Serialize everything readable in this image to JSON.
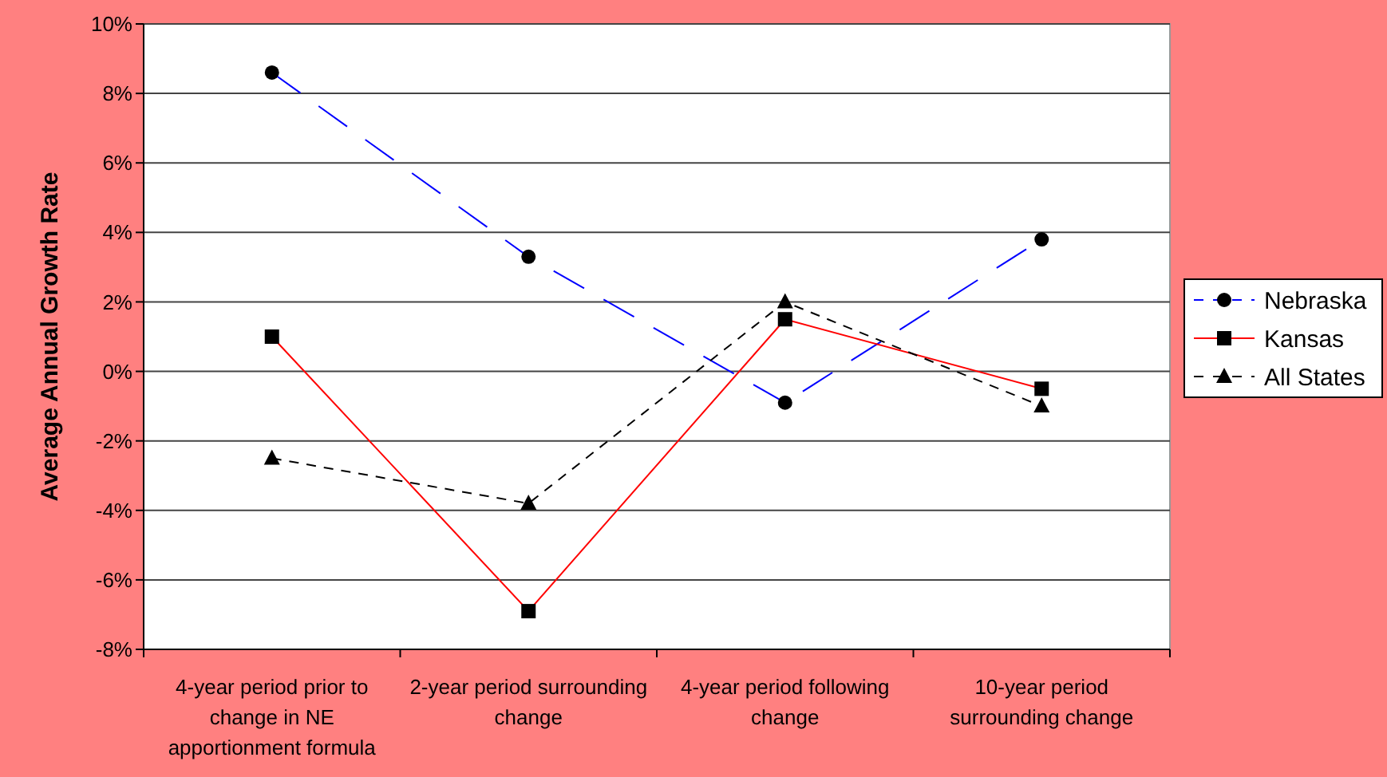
{
  "chart_data": {
    "type": "line",
    "ylabel": "Average Annual Growth Rate",
    "categories": [
      "4-year period prior to change in NE apportionment formula",
      "2-year period surrounding change",
      "4-year period following change",
      "10-year period surrounding change"
    ],
    "series": [
      {
        "name": "Nebraska",
        "color": "#0000ff",
        "values": [
          8.6,
          3.3,
          -0.9,
          3.8
        ],
        "marker": "circle",
        "line_style": "dashed"
      },
      {
        "name": "Kansas",
        "color": "#ff0000",
        "values": [
          1.0,
          -6.9,
          1.5,
          -0.5
        ],
        "marker": "square",
        "line_style": "solid"
      },
      {
        "name": "All States",
        "color": "#000000",
        "values": [
          -2.5,
          -3.8,
          2.0,
          -1.0
        ],
        "marker": "triangle",
        "line_style": "dashed"
      }
    ],
    "ylim": [
      -8,
      10
    ],
    "yticks": [
      {
        "value": -8,
        "label": "-8%"
      },
      {
        "value": -6,
        "label": "-6%"
      },
      {
        "value": -4,
        "label": "-4%"
      },
      {
        "value": -2,
        "label": "-2%"
      },
      {
        "value": 0,
        "label": "0%"
      },
      {
        "value": 2,
        "label": "2%"
      },
      {
        "value": 4,
        "label": "4%"
      },
      {
        "value": 6,
        "label": "6%"
      },
      {
        "value": 8,
        "label": "8%"
      },
      {
        "value": 10,
        "label": "10%"
      }
    ],
    "grid": "y",
    "legend": "right"
  }
}
